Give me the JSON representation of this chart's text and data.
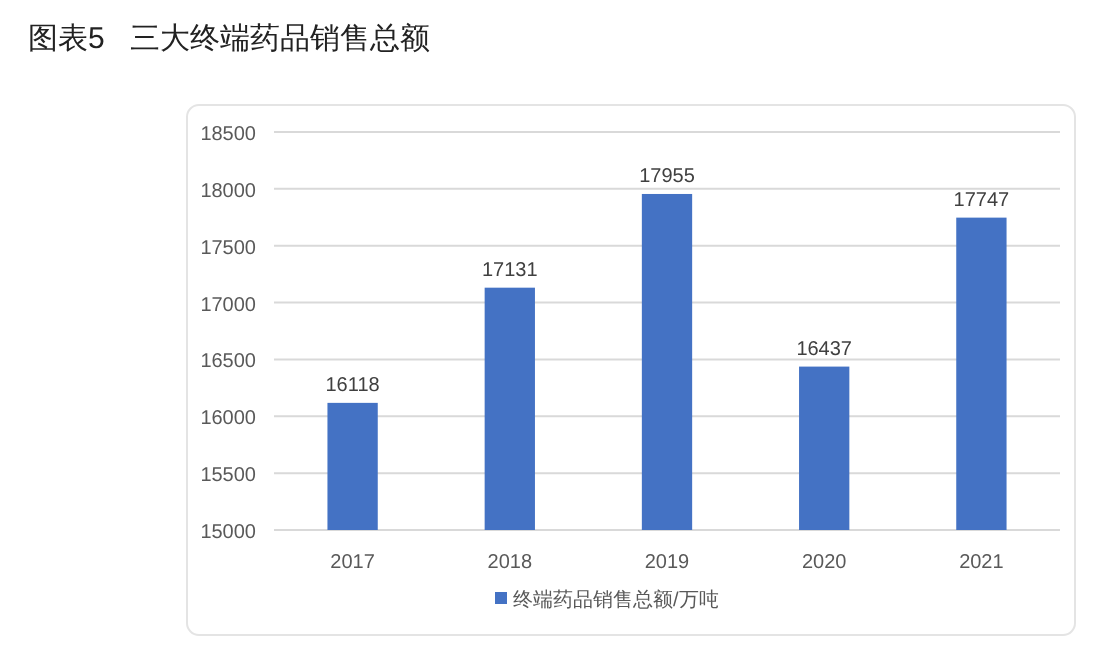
{
  "chart_data": {
    "type": "bar",
    "title": "图表5   三大终端药品销售总额",
    "categories": [
      "2017",
      "2018",
      "2019",
      "2020",
      "2021"
    ],
    "series": [
      {
        "name": "终端药品销售总额/万吨",
        "color": "#4472c4",
        "values": [
          16118,
          17131,
          17955,
          16437,
          17747
        ]
      }
    ],
    "ylim": [
      15000,
      18500
    ],
    "yticks": [
      15000,
      15500,
      16000,
      16500,
      17000,
      17500,
      18000,
      18500
    ],
    "grid": "y",
    "data_labels": true,
    "legend": "bottom"
  }
}
